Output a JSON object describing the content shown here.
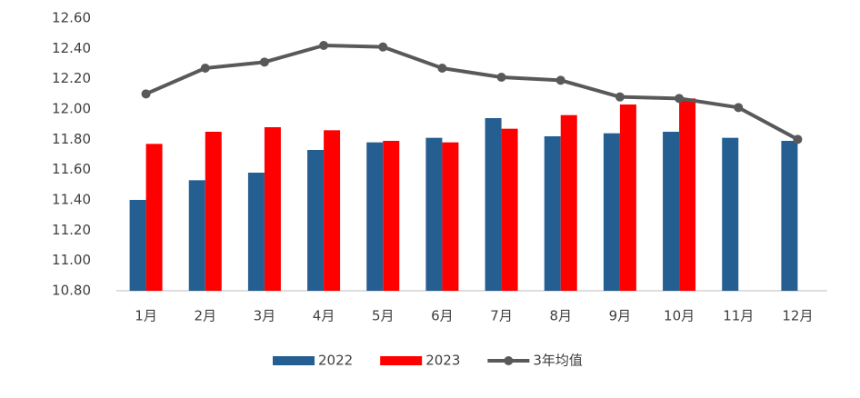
{
  "chart_data": {
    "type": "bar",
    "categories": [
      "1月",
      "2月",
      "3月",
      "4月",
      "5月",
      "6月",
      "7月",
      "8月",
      "9月",
      "10月",
      "11月",
      "12月"
    ],
    "series": [
      {
        "name": "2022",
        "color": "#255e91",
        "values": [
          11.4,
          11.53,
          11.58,
          11.73,
          11.78,
          11.81,
          11.94,
          11.82,
          11.84,
          11.85,
          11.81,
          11.79
        ]
      },
      {
        "name": "2023",
        "color": "#ff0000",
        "values": [
          11.77,
          11.85,
          11.88,
          11.86,
          11.79,
          11.78,
          11.87,
          11.96,
          12.03,
          12.07,
          null,
          null
        ]
      },
      {
        "name": "3年均值",
        "color": "#595959",
        "type": "line",
        "values": [
          12.1,
          12.27,
          12.31,
          12.42,
          12.41,
          12.27,
          12.21,
          12.19,
          12.08,
          12.07,
          12.01,
          11.8
        ]
      }
    ],
    "ylim": [
      10.8,
      12.6
    ],
    "yticks": [
      {
        "value": 10.8,
        "label": "10.80"
      },
      {
        "value": 11.0,
        "label": "11.00"
      },
      {
        "value": 11.2,
        "label": "11.20"
      },
      {
        "value": 11.4,
        "label": "11.40"
      },
      {
        "value": 11.6,
        "label": "11.60"
      },
      {
        "value": 11.8,
        "label": "11.80"
      },
      {
        "value": 12.0,
        "label": "12.00"
      },
      {
        "value": 12.2,
        "label": "12.20"
      },
      {
        "value": 12.4,
        "label": "12.40"
      },
      {
        "value": 12.6,
        "label": "12.60"
      }
    ],
    "grid": false,
    "legend": "bottom"
  }
}
